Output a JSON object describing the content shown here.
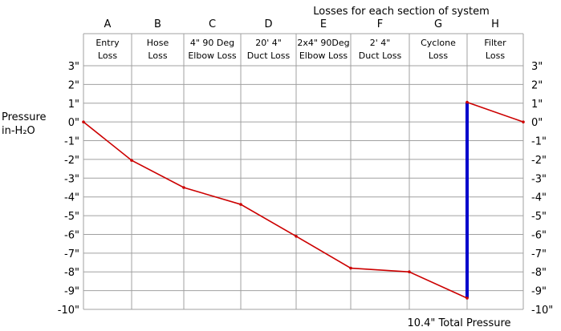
{
  "chart_data": {
    "type": "line",
    "title": "Losses for each section of system",
    "ylabel_line1": "Pressure",
    "ylabel_line2": "in-H₂O",
    "footer": "10.4\" Total Pressure",
    "column_letters": [
      "A",
      "B",
      "C",
      "D",
      "E",
      "F",
      "G",
      "H"
    ],
    "column_labels": [
      [
        "Entry",
        "Loss"
      ],
      [
        "Hose",
        "Loss"
      ],
      [
        "4\" 90 Deg",
        "Elbow Loss"
      ],
      [
        "20' 4\"",
        "Duct Loss"
      ],
      [
        "2x4\" 90Deg",
        "Elbow Loss"
      ],
      [
        "2' 4\"",
        "Duct Loss"
      ],
      [
        "Cyclone",
        "Loss"
      ],
      [
        "Filter",
        "Loss"
      ]
    ],
    "y_ticks": [
      3,
      2,
      1,
      0,
      -1,
      -2,
      -3,
      -4,
      -5,
      -6,
      -7,
      -8,
      -9,
      -10
    ],
    "y_tick_labels": [
      "3\"",
      "2\"",
      "1\"",
      "0\"",
      "-1\"",
      "-2\"",
      "-3\"",
      "-4\"",
      "-5\"",
      "-6\"",
      "-7\"",
      "-8\"",
      "-9\"",
      "-10\""
    ],
    "ylim": [
      -10,
      3
    ],
    "x_boundaries": [
      0,
      1,
      2,
      3,
      4,
      5,
      6,
      7,
      8
    ],
    "grid": true,
    "series": [
      {
        "values": [
          0,
          -2.05,
          -3.5,
          -4.4,
          -6.1,
          -7.8,
          -8.0,
          -9.4
        ]
      },
      {
        "values": [
          1.05,
          0
        ]
      }
    ],
    "series_positions": [
      [
        0,
        1,
        2,
        3,
        4,
        5,
        6,
        7
      ],
      [
        7,
        8
      ]
    ],
    "total_bar": {
      "x": 7,
      "from": -9.4,
      "to": 1.05
    },
    "colors": {
      "loss_line": "#cc0000",
      "total_bar": "#0000cc",
      "grid": "#a0a0a0"
    }
  }
}
